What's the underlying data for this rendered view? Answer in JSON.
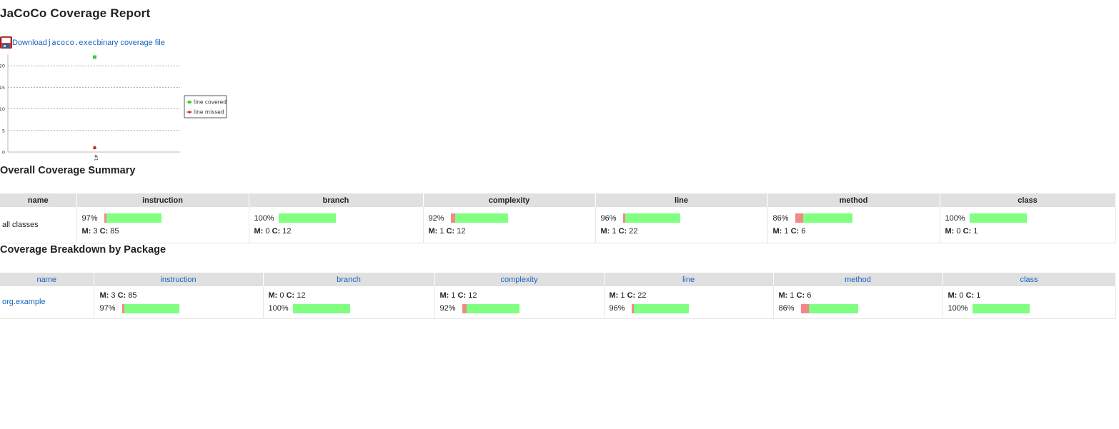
{
  "title": "JaCoCo Coverage Report",
  "download": {
    "prefix": "Download ",
    "file": "jacoco.exec",
    "suffix": " binary coverage file"
  },
  "chart_data": {
    "type": "scatter",
    "categories": [
      "#1"
    ],
    "ylim": [
      0,
      22
    ],
    "yticks": [
      0,
      5,
      10,
      15,
      20
    ],
    "grid": true,
    "legend_position": "right",
    "series": [
      {
        "name": "line covered",
        "values": [
          22
        ],
        "color": "#3ecf3e",
        "marker": "square"
      },
      {
        "name": "line missed",
        "values": [
          1
        ],
        "color": "#d62020",
        "marker": "circle"
      }
    ]
  },
  "overall": {
    "heading": "Overall Coverage Summary",
    "columns": [
      "name",
      "instruction",
      "branch",
      "complexity",
      "line",
      "method",
      "class"
    ],
    "row": {
      "name": "all classes",
      "cells": [
        {
          "pct": "97%",
          "fraction": 0.97,
          "m": "3",
          "c": "85"
        },
        {
          "pct": "100%",
          "fraction": 1.0,
          "m": "0",
          "c": "12"
        },
        {
          "pct": "92%",
          "fraction": 0.92,
          "m": "1",
          "c": "12"
        },
        {
          "pct": "96%",
          "fraction": 0.96,
          "m": "1",
          "c": "22"
        },
        {
          "pct": "86%",
          "fraction": 0.86,
          "m": "1",
          "c": "6"
        },
        {
          "pct": "100%",
          "fraction": 1.0,
          "m": "0",
          "c": "1"
        }
      ]
    }
  },
  "packages": {
    "heading": "Coverage Breakdown by Package",
    "columns": [
      "name",
      "instruction",
      "branch",
      "complexity",
      "line",
      "method",
      "class"
    ],
    "row": {
      "name": "org.example",
      "cells": [
        {
          "pct": "97%",
          "fraction": 0.97,
          "m": "3",
          "c": "85"
        },
        {
          "pct": "100%",
          "fraction": 1.0,
          "m": "0",
          "c": "12"
        },
        {
          "pct": "92%",
          "fraction": 0.92,
          "m": "1",
          "c": "12"
        },
        {
          "pct": "96%",
          "fraction": 0.96,
          "m": "1",
          "c": "22"
        },
        {
          "pct": "86%",
          "fraction": 0.86,
          "m": "1",
          "c": "6"
        },
        {
          "pct": "100%",
          "fraction": 1.0,
          "m": "0",
          "c": "1"
        }
      ]
    }
  },
  "labels": {
    "m": "M:",
    "c": "C:"
  },
  "colors": {
    "link": "#1565c0",
    "covered_bar": "#80ff80",
    "missed_bar": "#f08a8a",
    "header_bg": "#e0e0e0"
  }
}
